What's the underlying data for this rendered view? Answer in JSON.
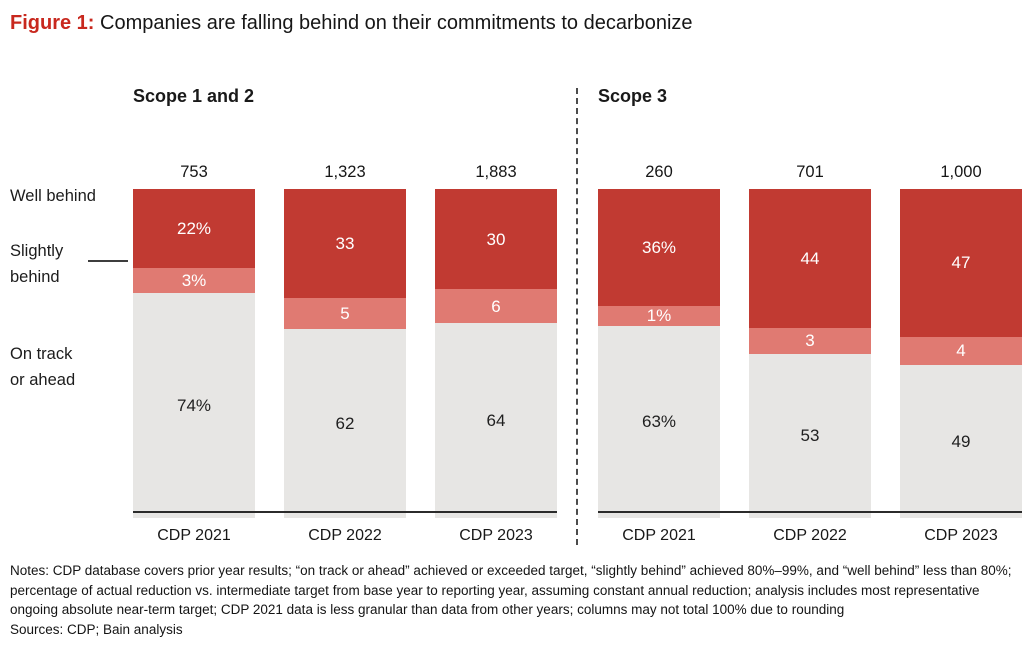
{
  "figure": {
    "label": "Figure 1:",
    "title": "Companies are falling behind on their commitments to decarbonize"
  },
  "colors": {
    "title_accent": "#c8281e",
    "well_behind": "#c13a32",
    "slightly_behind": "#e07a72",
    "on_track": "#e7e6e4",
    "axis_line": "#2b2b2b"
  },
  "legend": {
    "well_behind": "Well behind",
    "slightly_behind": "Slightly\nbehind",
    "on_track": "On track\nor ahead"
  },
  "chart_data": {
    "type": "bar",
    "stacked": true,
    "normalized": "100% stacked, values are percent of companies",
    "categories": [
      "CDP 2021",
      "CDP 2022",
      "CDP 2023"
    ],
    "segment_keys": [
      "well_behind",
      "slightly_behind",
      "on_track"
    ],
    "segment_names": [
      "Well behind",
      "Slightly behind",
      "On track or ahead"
    ],
    "label_styles": {
      "well_behind": "light",
      "slightly_behind": "light",
      "on_track": "dark"
    },
    "panels": [
      {
        "title": "Scope 1 and 2",
        "bars": [
          {
            "category": "CDP 2021",
            "total": "753",
            "values": {
              "well_behind": 22,
              "slightly_behind": 3,
              "on_track": 74
            },
            "labels": {
              "well_behind": "22%",
              "slightly_behind": "3%",
              "on_track": "74%"
            }
          },
          {
            "category": "CDP 2022",
            "total": "1,323",
            "values": {
              "well_behind": 33,
              "slightly_behind": 5,
              "on_track": 62
            },
            "labels": {
              "well_behind": "33",
              "slightly_behind": "5",
              "on_track": "62"
            }
          },
          {
            "category": "CDP 2023",
            "total": "1,883",
            "values": {
              "well_behind": 30,
              "slightly_behind": 6,
              "on_track": 64
            },
            "labels": {
              "well_behind": "30",
              "slightly_behind": "6",
              "on_track": "64"
            }
          }
        ]
      },
      {
        "title": "Scope 3",
        "bars": [
          {
            "category": "CDP 2021",
            "total": "260",
            "values": {
              "well_behind": 36,
              "slightly_behind": 1,
              "on_track": 63
            },
            "labels": {
              "well_behind": "36%",
              "slightly_behind": "1%",
              "on_track": "63%"
            }
          },
          {
            "category": "CDP 2022",
            "total": "701",
            "values": {
              "well_behind": 44,
              "slightly_behind": 3,
              "on_track": 53
            },
            "labels": {
              "well_behind": "44",
              "slightly_behind": "3",
              "on_track": "53"
            }
          },
          {
            "category": "CDP 2023",
            "total": "1,000",
            "values": {
              "well_behind": 47,
              "slightly_behind": 4,
              "on_track": 49
            },
            "labels": {
              "well_behind": "47",
              "slightly_behind": "4",
              "on_track": "49"
            }
          }
        ]
      }
    ]
  },
  "notes": "Notes: CDP database covers prior year results; “on track or ahead” achieved or exceeded target, “slightly behind” achieved 80%–99%, and “well behind” less than 80%; percentage of actual reduction vs. intermediate target from base year to reporting year, assuming constant annual reduction; analysis includes most representative ongoing absolute near-term target; CDP 2021 data is less granular than data from other years; columns may not total 100% due to rounding",
  "sources": "Sources: CDP; Bain analysis"
}
